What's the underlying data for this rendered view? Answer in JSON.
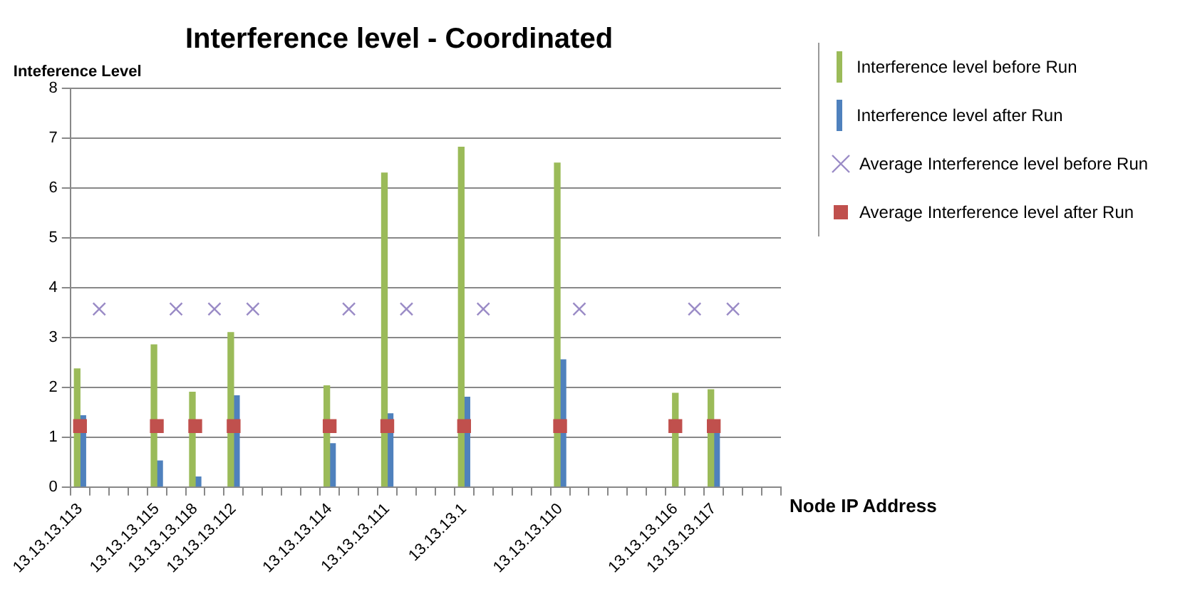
{
  "chart_data": {
    "type": "bar",
    "title": "Interference level - Coordinated",
    "xlabel": "Node IP Address",
    "ylabel": "Inteference Level",
    "categories": [
      "13.13.13.113",
      null,
      null,
      null,
      "13.13.13.115",
      null,
      "13.13.13.118",
      null,
      "13.13.13.112",
      null,
      null,
      null,
      null,
      "13.13.13.114",
      null,
      null,
      "13.13.13.111",
      null,
      null,
      null,
      "13.13.13.1",
      null,
      null,
      null,
      null,
      "13.13.13.110",
      null,
      null,
      null,
      null,
      null,
      "13.13.13.116",
      null,
      "13.13.13.117",
      null,
      null,
      null
    ],
    "series": [
      {
        "name": "Interference level before Run",
        "color": "#9bbb59",
        "values": [
          2.37,
          null,
          null,
          null,
          2.85,
          null,
          1.9,
          null,
          3.1,
          null,
          null,
          null,
          null,
          2.03,
          null,
          null,
          6.3,
          null,
          null,
          null,
          6.82,
          null,
          null,
          null,
          null,
          6.5,
          null,
          null,
          null,
          null,
          null,
          1.88,
          null,
          1.95,
          null,
          null,
          null
        ]
      },
      {
        "name": "Interference level after Run",
        "color": "#4f81bd",
        "values": [
          1.43,
          null,
          null,
          null,
          0.52,
          null,
          0.2,
          null,
          1.83,
          null,
          null,
          null,
          null,
          0.87,
          null,
          null,
          1.47,
          null,
          null,
          null,
          1.8,
          null,
          null,
          null,
          null,
          2.55,
          null,
          null,
          null,
          null,
          null,
          null,
          null,
          1.1,
          null,
          null,
          null
        ]
      },
      {
        "name": "Average Interference level before Run",
        "type": "scatter",
        "marker": "cross",
        "color": "#9a8bc6",
        "values": [
          null,
          3.57,
          null,
          null,
          null,
          3.57,
          null,
          3.57,
          null,
          3.57,
          null,
          null,
          null,
          null,
          3.57,
          null,
          null,
          3.57,
          null,
          null,
          null,
          3.57,
          null,
          null,
          null,
          null,
          3.57,
          null,
          null,
          null,
          null,
          null,
          3.57,
          null,
          3.57,
          null,
          null
        ]
      },
      {
        "name": "Average Interference level after Run",
        "type": "scatter",
        "marker": "square",
        "color": "#c0504d",
        "values": [
          1.22,
          null,
          null,
          null,
          1.22,
          null,
          1.22,
          null,
          1.22,
          null,
          null,
          null,
          null,
          1.22,
          null,
          null,
          1.22,
          null,
          null,
          null,
          1.22,
          null,
          null,
          null,
          null,
          1.22,
          null,
          null,
          null,
          null,
          null,
          1.22,
          null,
          1.22,
          null,
          null,
          null
        ]
      }
    ],
    "ylim": [
      0,
      8
    ],
    "yticks": [
      0,
      1,
      2,
      3,
      4,
      5,
      6,
      7,
      8
    ],
    "grid": "y",
    "legend": "right"
  }
}
